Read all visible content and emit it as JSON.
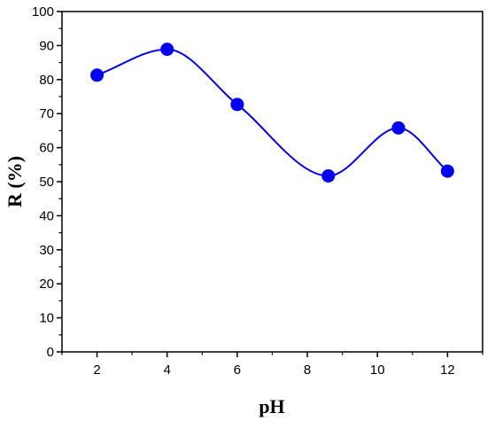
{
  "chart_data": {
    "type": "line",
    "title": "",
    "xlabel": "pH",
    "ylabel": "R (%)",
    "xlim": [
      1,
      13
    ],
    "ylim": [
      0,
      100
    ],
    "x_ticks": [
      2,
      4,
      6,
      8,
      10,
      12
    ],
    "y_ticks": [
      0,
      10,
      20,
      30,
      40,
      50,
      60,
      70,
      80,
      90,
      100
    ],
    "grid": false,
    "legend": "none",
    "series": [
      {
        "x": [
          2,
          4,
          6,
          8.6,
          10.6,
          12
        ],
        "y": [
          81.3,
          88.9,
          72.7,
          51.7,
          65.8,
          53.1
        ],
        "color": "#0000ff",
        "marker": "circle",
        "smooth": true
      }
    ]
  }
}
